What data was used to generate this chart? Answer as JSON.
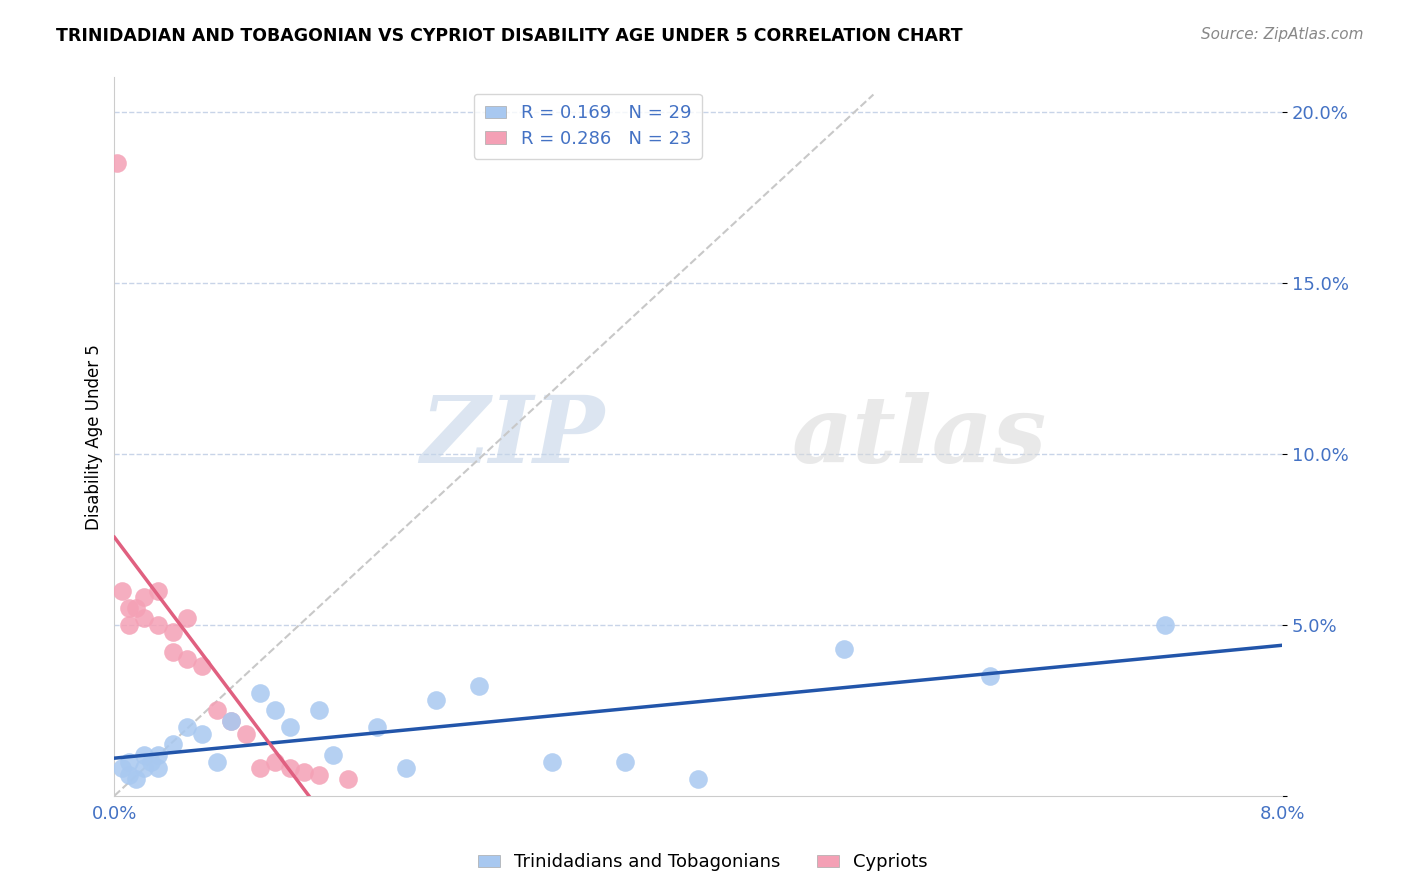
{
  "title": "TRINIDADIAN AND TOBAGONIAN VS CYPRIOT DISABILITY AGE UNDER 5 CORRELATION CHART",
  "source": "Source: ZipAtlas.com",
  "ylabel": "Disability Age Under 5",
  "watermark_zip": "ZIP",
  "watermark_atlas": "atlas",
  "blue_R": 0.169,
  "blue_N": 29,
  "pink_R": 0.286,
  "pink_N": 23,
  "xlim": [
    0.0,
    0.08
  ],
  "ylim": [
    0.0,
    0.21
  ],
  "xticks": [
    0.0,
    0.02,
    0.04,
    0.06,
    0.08
  ],
  "yticks": [
    0.0,
    0.05,
    0.1,
    0.15,
    0.2
  ],
  "ytick_labels": [
    "",
    "5.0%",
    "10.0%",
    "15.0%",
    "20.0%"
  ],
  "xtick_labels": [
    "0.0%",
    "",
    "",
    "",
    "8.0%"
  ],
  "blue_color": "#A8C8F0",
  "pink_color": "#F4A0B5",
  "blue_line_color": "#2255AA",
  "pink_line_color": "#E06080",
  "diagonal_color": "#C8C8C8",
  "grid_color": "#C8D4E8",
  "background_color": "#FFFFFF",
  "legend_label_blue": "Trinidadians and Tobagonians",
  "legend_label_pink": "Cypriots",
  "title_color": "#000000",
  "axis_label_color": "#4472C4",
  "blue_x": [
    0.0005,
    0.001,
    0.001,
    0.0015,
    0.002,
    0.002,
    0.0025,
    0.003,
    0.003,
    0.004,
    0.005,
    0.006,
    0.007,
    0.008,
    0.01,
    0.011,
    0.012,
    0.014,
    0.015,
    0.018,
    0.02,
    0.022,
    0.025,
    0.03,
    0.035,
    0.04,
    0.05,
    0.06,
    0.072
  ],
  "blue_y": [
    0.008,
    0.006,
    0.01,
    0.005,
    0.012,
    0.008,
    0.01,
    0.012,
    0.008,
    0.015,
    0.02,
    0.018,
    0.01,
    0.022,
    0.03,
    0.025,
    0.02,
    0.025,
    0.012,
    0.02,
    0.008,
    0.028,
    0.032,
    0.01,
    0.01,
    0.005,
    0.043,
    0.035,
    0.05
  ],
  "pink_x": [
    0.0002,
    0.0005,
    0.001,
    0.001,
    0.0015,
    0.002,
    0.002,
    0.003,
    0.003,
    0.004,
    0.004,
    0.005,
    0.005,
    0.006,
    0.007,
    0.008,
    0.009,
    0.01,
    0.011,
    0.012,
    0.013,
    0.014,
    0.016
  ],
  "pink_y": [
    0.185,
    0.06,
    0.055,
    0.05,
    0.055,
    0.058,
    0.052,
    0.06,
    0.05,
    0.048,
    0.042,
    0.052,
    0.04,
    0.038,
    0.025,
    0.022,
    0.018,
    0.008,
    0.01,
    0.008,
    0.007,
    0.006,
    0.005
  ]
}
